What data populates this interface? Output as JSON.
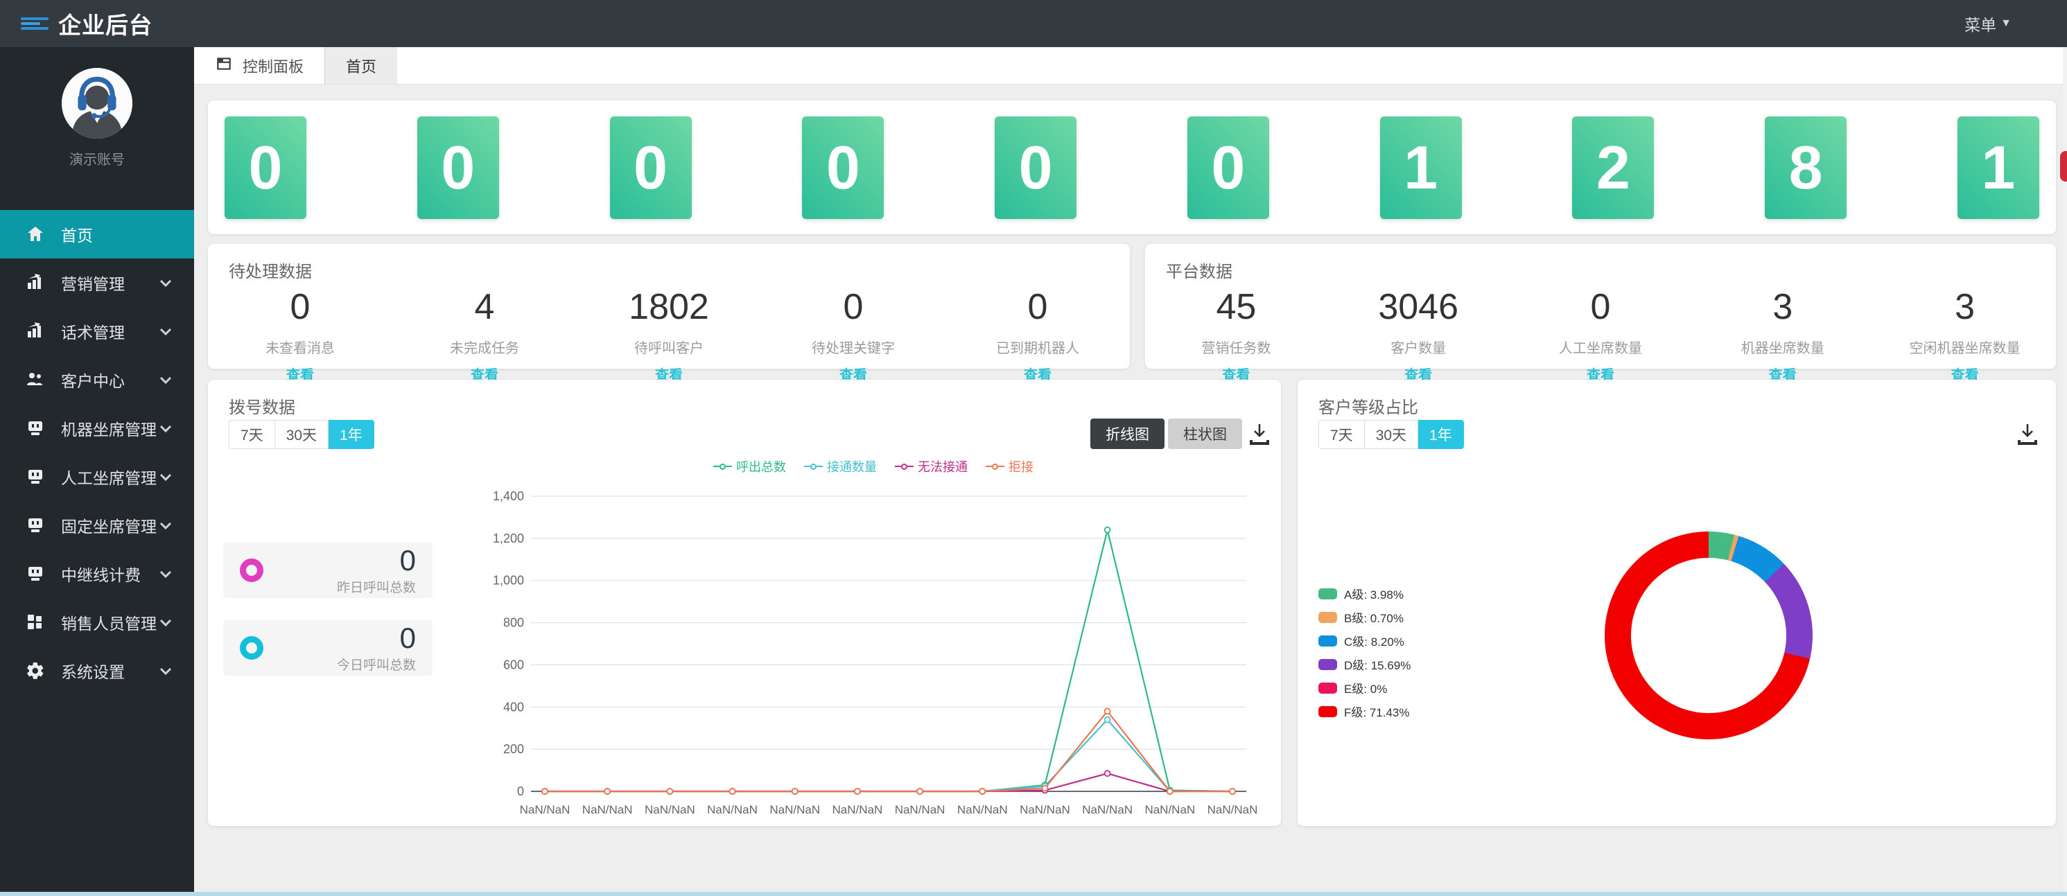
{
  "header": {
    "title": "企业后台",
    "menu_label": "菜单",
    "menu_caret": "▼"
  },
  "sidebar": {
    "account_name": "演示账号",
    "items": [
      {
        "label": "首页",
        "icon": "home-icon",
        "active": true,
        "has_children": false
      },
      {
        "label": "营销管理",
        "icon": "chart-icon",
        "active": false,
        "has_children": true
      },
      {
        "label": "话术管理",
        "icon": "chart-icon",
        "active": false,
        "has_children": true
      },
      {
        "label": "客户中心",
        "icon": "users-icon",
        "active": false,
        "has_children": true
      },
      {
        "label": "机器坐席管理",
        "icon": "robot-icon",
        "active": false,
        "has_children": true
      },
      {
        "label": "人工坐席管理",
        "icon": "robot-icon",
        "active": false,
        "has_children": true
      },
      {
        "label": "固定坐席管理",
        "icon": "robot-icon",
        "active": false,
        "has_children": true
      },
      {
        "label": "中继线计费",
        "icon": "robot-icon",
        "active": false,
        "has_children": true
      },
      {
        "label": "销售人员管理",
        "icon": "grid-icon",
        "active": false,
        "has_children": true
      },
      {
        "label": "系统设置",
        "icon": "gear-icon",
        "active": false,
        "has_children": true
      }
    ]
  },
  "tabs": [
    {
      "label": "控制面板",
      "icon": "panel-window-icon",
      "active": false
    },
    {
      "label": "首页",
      "active": true
    }
  ],
  "tiles": [
    "0",
    "0",
    "0",
    "0",
    "0",
    "0",
    "1",
    "2",
    "8",
    "1"
  ],
  "pending_panel": {
    "title": "待处理数据",
    "link_label": "查看",
    "stats": [
      {
        "value": "0",
        "label": "未查看消息"
      },
      {
        "value": "4",
        "label": "未完成任务"
      },
      {
        "value": "1802",
        "label": "待呼叫客户"
      },
      {
        "value": "0",
        "label": "待处理关键字"
      },
      {
        "value": "0",
        "label": "已到期机器人"
      }
    ]
  },
  "platform_panel": {
    "title": "平台数据",
    "link_label": "查看",
    "stats": [
      {
        "value": "45",
        "label": "营销任务数"
      },
      {
        "value": "3046",
        "label": "客户数量"
      },
      {
        "value": "0",
        "label": "人工坐席数量"
      },
      {
        "value": "3",
        "label": "机器坐席数量"
      },
      {
        "value": "3",
        "label": "空闲机器坐席数量"
      }
    ]
  },
  "dial_panel": {
    "title": "拨号数据",
    "range_buttons": [
      "7天",
      "30天",
      "1年"
    ],
    "active_range": "1年",
    "type_buttons": {
      "line": "折线图",
      "bar": "柱状图"
    },
    "active_type": "折线图",
    "side_stats": [
      {
        "value": "0",
        "label": "昨日呼叫总数",
        "color": "#e03ec1"
      },
      {
        "value": "0",
        "label": "今日呼叫总数",
        "color": "#14bfd8"
      }
    ],
    "chart_data": {
      "type": "line",
      "x": [
        "NaN/NaN",
        "NaN/NaN",
        "NaN/NaN",
        "NaN/NaN",
        "NaN/NaN",
        "NaN/NaN",
        "NaN/NaN",
        "NaN/NaN",
        "NaN/NaN",
        "NaN/NaN",
        "NaN/NaN",
        "NaN/NaN"
      ],
      "series": [
        {
          "name": "呼出总数",
          "color": "#2eb98a",
          "values": [
            0,
            0,
            0,
            0,
            0,
            0,
            0,
            0,
            30,
            1240,
            5,
            0
          ]
        },
        {
          "name": "接通数量",
          "color": "#45c2cb",
          "values": [
            0,
            0,
            0,
            0,
            0,
            0,
            0,
            0,
            25,
            340,
            0,
            0
          ]
        },
        {
          "name": "无法接通",
          "color": "#bd2e8f",
          "values": [
            0,
            0,
            0,
            0,
            0,
            0,
            0,
            0,
            5,
            85,
            0,
            0
          ]
        },
        {
          "name": "拒接",
          "color": "#f0744f",
          "values": [
            0,
            0,
            0,
            0,
            0,
            0,
            0,
            0,
            15,
            380,
            0,
            0
          ]
        }
      ],
      "ylim": [
        0,
        1400
      ],
      "ytick_step": 200,
      "grid": true,
      "legend_position": "top-center"
    }
  },
  "grade_panel": {
    "title": "客户等级占比",
    "range_buttons": [
      "7天",
      "30天",
      "1年"
    ],
    "active_range": "1年",
    "chart_data": {
      "type": "pie",
      "donut": true,
      "labels": [
        "A级",
        "B级",
        "C级",
        "D级",
        "E级",
        "F级"
      ],
      "values": [
        3.98,
        0.7,
        8.2,
        15.69,
        0,
        71.43
      ],
      "display_pcts": [
        "3.98%",
        "0.70%",
        "8.20%",
        "15.69%",
        "0%",
        "71.43%"
      ],
      "colors": [
        "#45ba82",
        "#f2a45e",
        "#0e90e0",
        "#7e3fc6",
        "#eb1360",
        "#f20000"
      ],
      "legend_position": "left"
    }
  }
}
